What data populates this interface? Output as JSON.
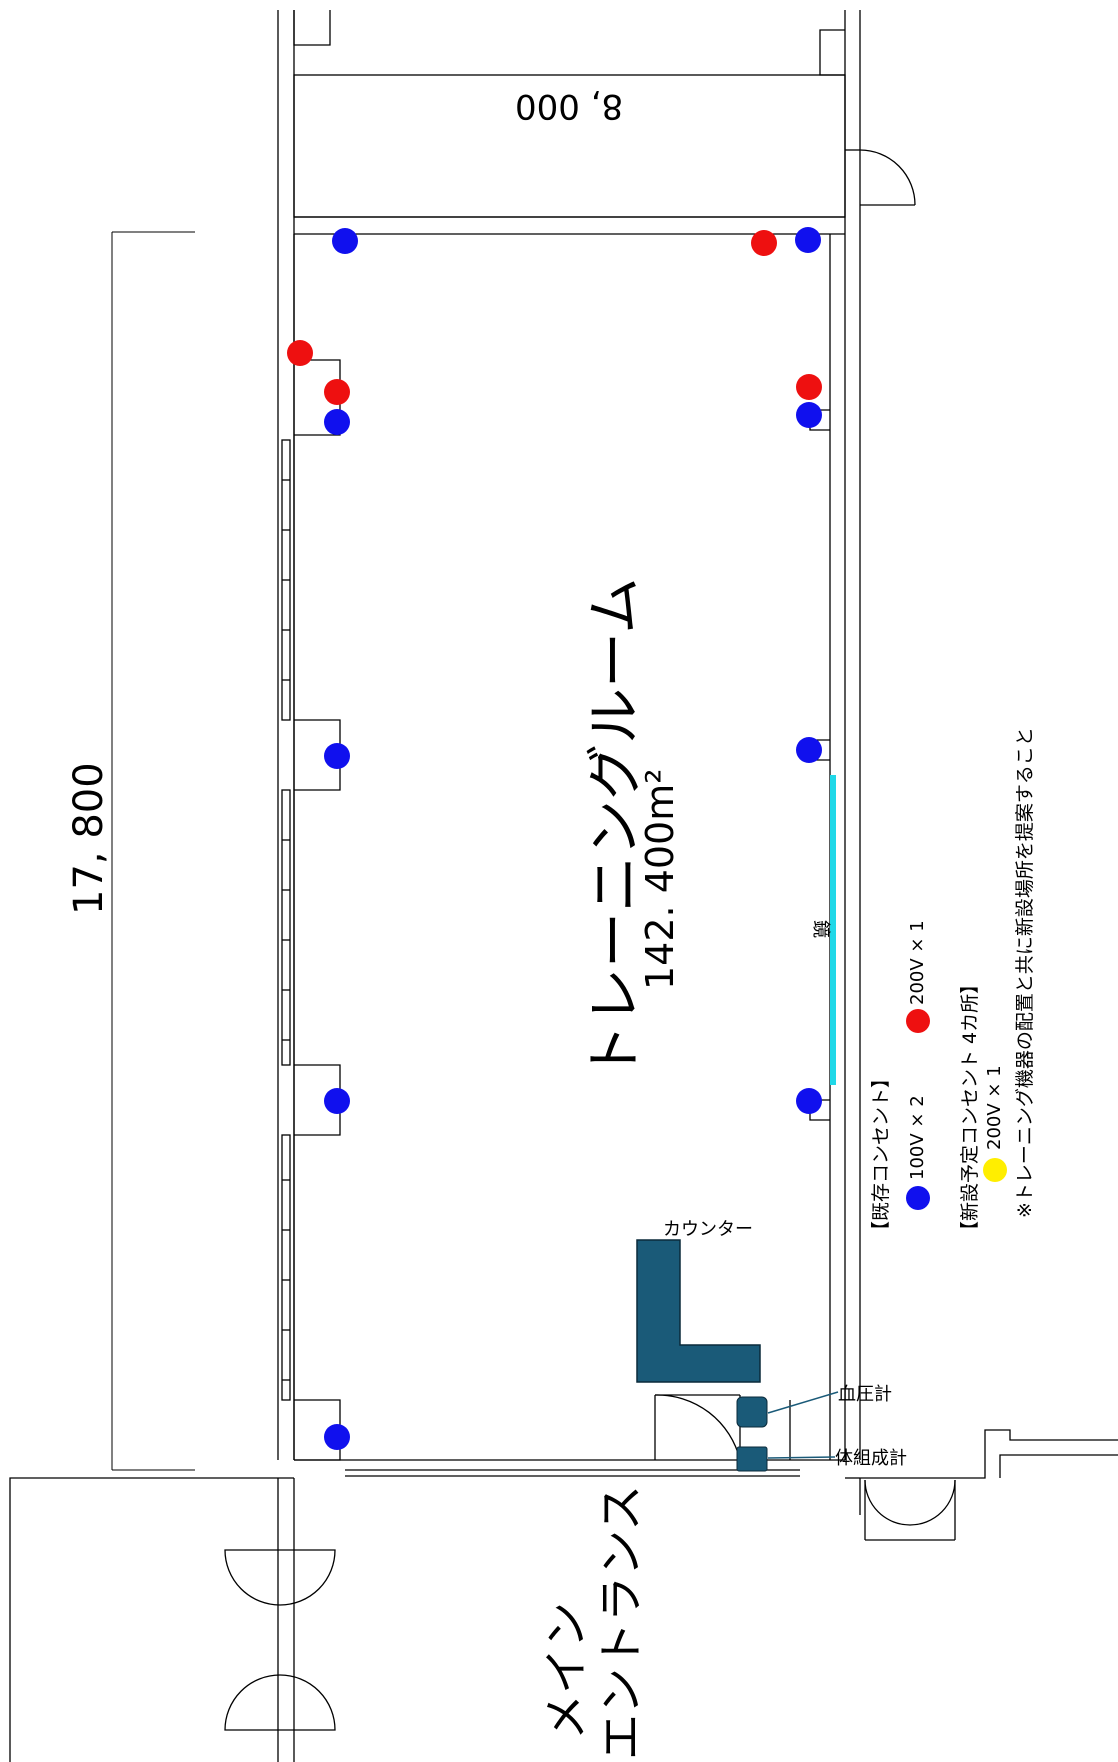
{
  "room": {
    "name": "トレーニングルーム",
    "area": "142. 400m²"
  },
  "dimensions": {
    "width": "8, 000",
    "length": "17, 800"
  },
  "mirror_label": "鏡",
  "counter_label": "カウンター",
  "devices": {
    "blood_pressure": "血圧計",
    "body_composition": "体組成計"
  },
  "entrance_label": {
    "line1": "メイン",
    "line2": "エントランス"
  },
  "legend": {
    "existing_title": "【既存コンセント】",
    "existing_100v": "100V × 2",
    "existing_200v": "200V × 1",
    "new_title": "【新設予定コンセント 4カ所】",
    "new_200v": "200V × 1",
    "note": "※トレーニング機器の配置と共に新設場所を提案すること"
  },
  "colors": {
    "outlet_100v": "#1010ee",
    "outlet_200v_existing": "#ee1010",
    "outlet_200v_new": "#ffee00",
    "mirror": "#20d8e8",
    "counter": "#1a5a78"
  },
  "outlets": [
    {
      "type": "100V",
      "wall": "north-left"
    },
    {
      "type": "200V",
      "wall": "north-right"
    },
    {
      "type": "100V",
      "wall": "north-right"
    },
    {
      "type": "200V",
      "wall": "west"
    },
    {
      "type": "200V",
      "wall": "west"
    },
    {
      "type": "100V",
      "wall": "west"
    },
    {
      "type": "200V",
      "wall": "east"
    },
    {
      "type": "100V",
      "wall": "east"
    },
    {
      "type": "100V",
      "wall": "west"
    },
    {
      "type": "100V",
      "wall": "east"
    },
    {
      "type": "100V",
      "wall": "east"
    },
    {
      "type": "100V",
      "wall": "west"
    },
    {
      "type": "100V",
      "wall": "west"
    }
  ]
}
